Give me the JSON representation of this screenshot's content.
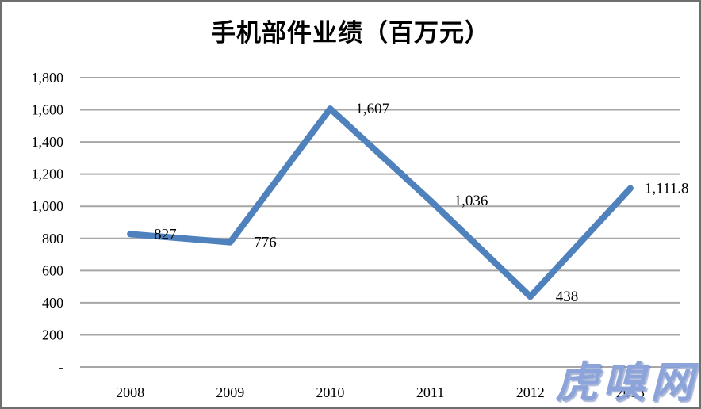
{
  "chart_data": {
    "type": "line",
    "title": "手机部件业绩（百万元）",
    "categories": [
      "2008",
      "2009",
      "2010",
      "2011",
      "2012",
      "2013"
    ],
    "values": [
      827,
      776,
      1607,
      1036,
      438,
      1111.8
    ],
    "point_labels": [
      "827",
      "776",
      "1,607",
      "1,036",
      "438",
      "1,111.8"
    ],
    "xlabel": "",
    "ylabel": "",
    "ylim": [
      0,
      1800
    ],
    "ytick_step": 200,
    "ytick_labels": [
      "-",
      "200",
      "400",
      "600",
      "800",
      "1,000",
      "1,200",
      "1,400",
      "1,600",
      "1,800"
    ],
    "grid": "horizontal",
    "legend": "none",
    "line_color": "#4F81BD",
    "grid_color": "#A6A6A6",
    "label_dx": [
      30,
      30,
      32,
      30,
      32,
      18
    ]
  },
  "watermark": {
    "text": "虎嗅网",
    "color": "#8CA4DA"
  }
}
